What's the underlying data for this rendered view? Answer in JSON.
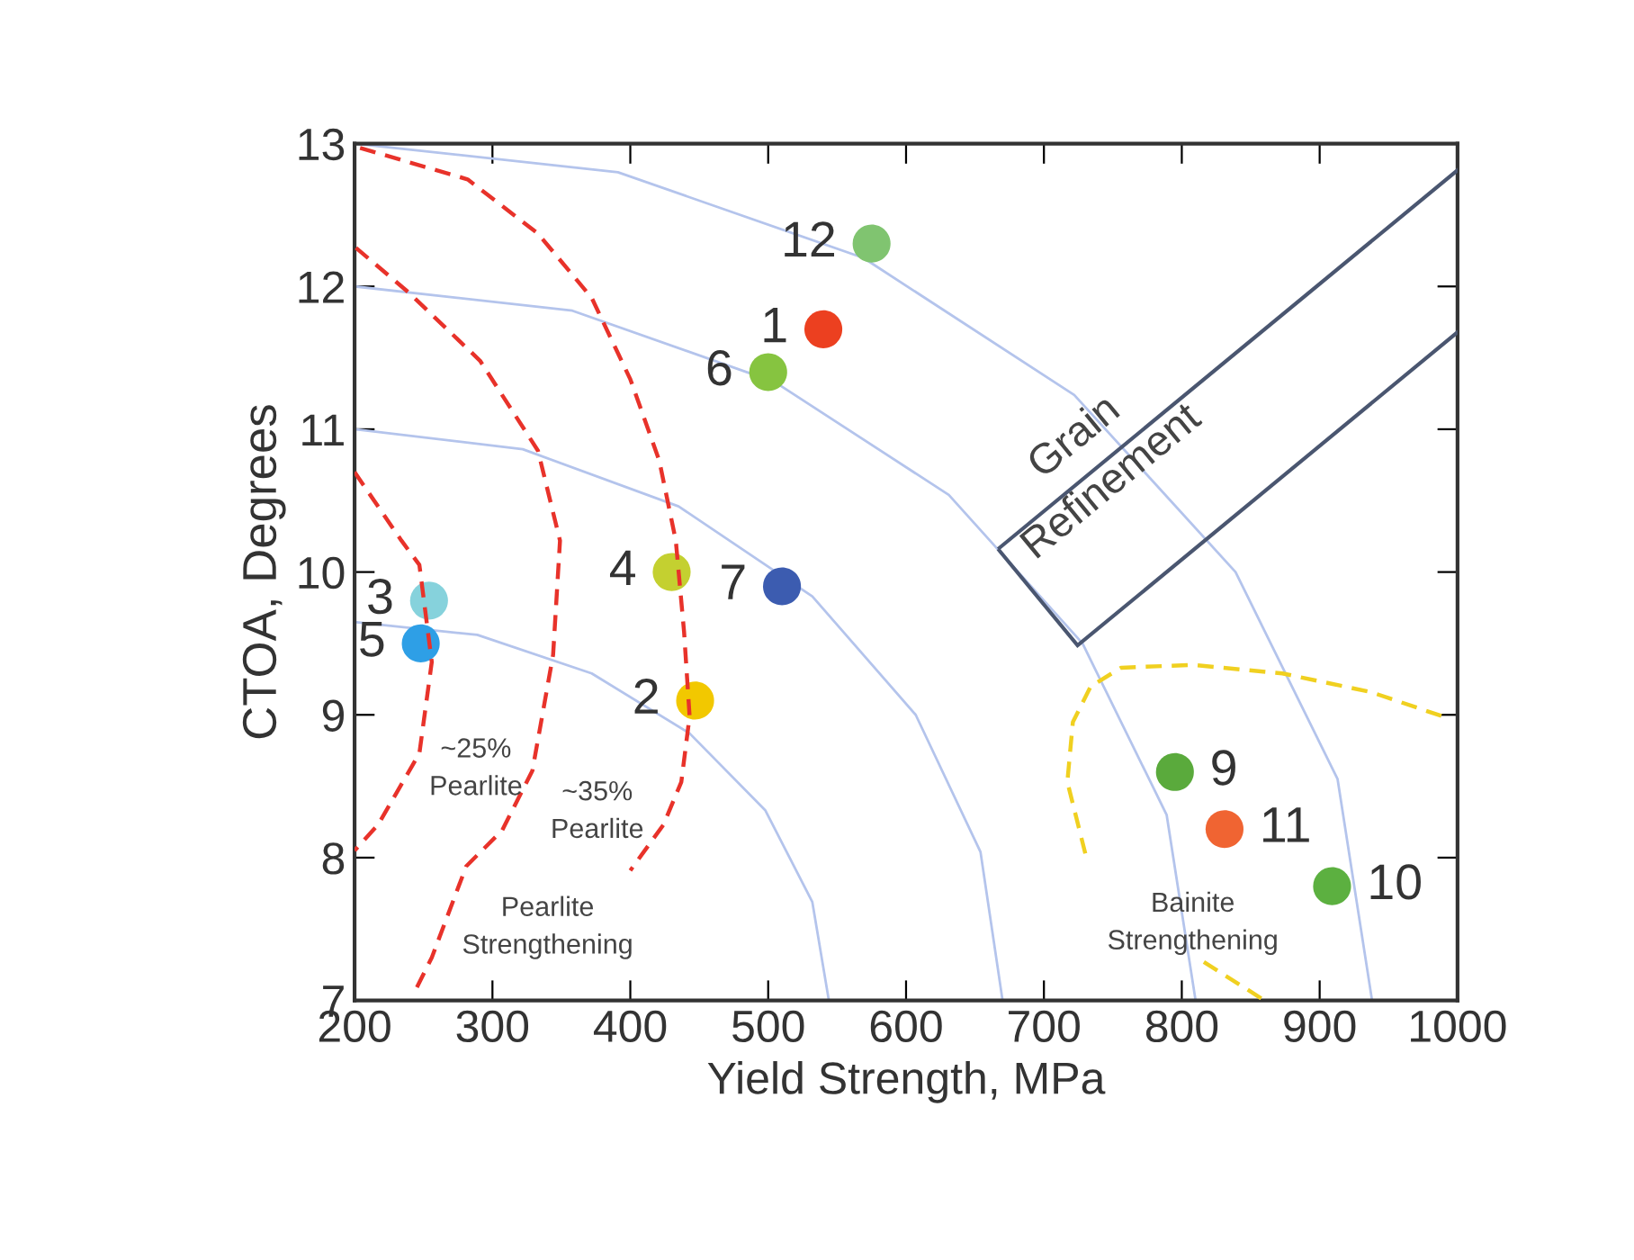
{
  "chart_data": {
    "type": "scatter",
    "xlabel": "Yield Strength, MPa",
    "ylabel": "CTOA, Degrees",
    "xlim": [
      200,
      1000
    ],
    "ylim": [
      7,
      13
    ],
    "xticks": [
      200,
      300,
      400,
      500,
      600,
      700,
      800,
      900,
      1000
    ],
    "yticks": [
      7,
      8,
      9,
      10,
      11,
      12,
      13
    ],
    "grid": false,
    "series": [
      {
        "type": "line",
        "color": "#b4c4ec",
        "line_style": "solid",
        "marker": "none",
        "x": [
          544,
          532,
          498,
          443,
          372,
          289,
          200
        ],
        "values": [
          7,
          7.69,
          8.33,
          8.87,
          9.29,
          9.56,
          9.65
        ]
      },
      {
        "type": "line",
        "color": "#b4c4ec",
        "line_style": "solid",
        "marker": "none",
        "x": [
          670,
          654,
          607,
          532,
          435,
          322,
          200
        ],
        "values": [
          7,
          8.04,
          9,
          9.83,
          10.46,
          10.86,
          11
        ]
      },
      {
        "type": "line",
        "color": "#b4c4ec",
        "line_style": "solid",
        "marker": "none",
        "x": [
          810,
          789,
          728,
          631,
          505,
          358,
          200
        ],
        "values": [
          7,
          8.3,
          9.5,
          10.54,
          11.33,
          11.83,
          12
        ]
      },
      {
        "type": "line",
        "color": "#b4c4ec",
        "line_style": "solid",
        "marker": "none",
        "x": [
          938,
          913,
          839,
          722,
          569,
          391,
          200
        ],
        "values": [
          7,
          8.55,
          10,
          11.24,
          12.2,
          12.8,
          13
        ]
      },
      {
        "type": "line",
        "color": "#e8322a",
        "line_style": "dashed",
        "marker": "none",
        "x": [
          204,
          282,
          333,
          372,
          400,
          421,
          433,
          439,
          443,
          437,
          424,
          400
        ],
        "values": [
          12.97,
          12.75,
          12.37,
          11.92,
          11.35,
          10.78,
          10.22,
          9.58,
          8.99,
          8.53,
          8.23,
          7.91
        ]
      },
      {
        "type": "line",
        "color": "#e8322a",
        "line_style": "dashed",
        "marker": "none",
        "x": [
          201,
          239,
          291,
          333,
          349,
          344,
          329,
          307,
          281,
          256,
          243
        ],
        "values": [
          12.27,
          11.96,
          11.48,
          10.85,
          10.22,
          9.42,
          8.61,
          8.19,
          7.94,
          7.3,
          7.05
        ]
      },
      {
        "type": "line",
        "color": "#e8322a",
        "line_style": "dashed",
        "marker": "none",
        "x": [
          200,
          234,
          247,
          256,
          247,
          217,
          200
        ],
        "values": [
          10.7,
          10.22,
          10.05,
          9.37,
          8.73,
          8.23,
          8.05
        ]
      },
      {
        "type": "line",
        "color": "#f0d020",
        "line_style": "dashed",
        "marker": "none",
        "x": [
          730,
          717,
          721,
          734,
          756,
          808,
          873,
          937,
          989
        ],
        "values": [
          8.03,
          8.53,
          8.95,
          9.2,
          9.33,
          9.35,
          9.29,
          9.16,
          8.99
        ]
      },
      {
        "type": "line",
        "color": "#f0d020",
        "line_style": "dashed",
        "marker": "none",
        "x": [
          816,
          860
        ],
        "values": [
          7.27,
          7.0
        ]
      },
      {
        "marker": "circle",
        "x": [
          540,
          447,
          254,
          430,
          248,
          500,
          510,
          795,
          909,
          831,
          575
        ],
        "values": [
          11.7,
          9.1,
          9.8,
          10.0,
          9.5,
          11.4,
          9.9,
          8.6,
          7.8,
          8.2,
          12.3
        ],
        "colors": [
          "#ec4020",
          "#f2c800",
          "#86d2dc",
          "#c4d030",
          "#2e9fe6",
          "#86c440",
          "#3c5cb0",
          "#5aaa3c",
          "#5cb040",
          "#f06432",
          "#80c470"
        ]
      }
    ],
    "annotations": [
      "~25%\nPearlite",
      "~35%\nPearlite",
      "Pearlite\nStrengthening",
      "Bainite\nStrengthening",
      "Grain\nRefinement",
      {
        "text": "1",
        "x": 540,
        "y": 11.7
      },
      {
        "text": "2",
        "x": 447,
        "y": 9.1
      },
      {
        "text": "3",
        "x": 254,
        "y": 9.8
      },
      {
        "text": "4",
        "x": 430,
        "y": 10.0
      },
      {
        "text": "5",
        "x": 248,
        "y": 9.5
      },
      {
        "text": "6",
        "x": 500,
        "y": 11.4
      },
      {
        "text": "7",
        "x": 510,
        "y": 9.9
      },
      {
        "text": "9",
        "x": 795,
        "y": 8.6
      },
      {
        "text": "10",
        "x": 909,
        "y": 7.8
      },
      {
        "text": "11",
        "x": 831,
        "y": 8.2
      },
      {
        "text": "12",
        "x": 575,
        "y": 12.3
      }
    ]
  }
}
